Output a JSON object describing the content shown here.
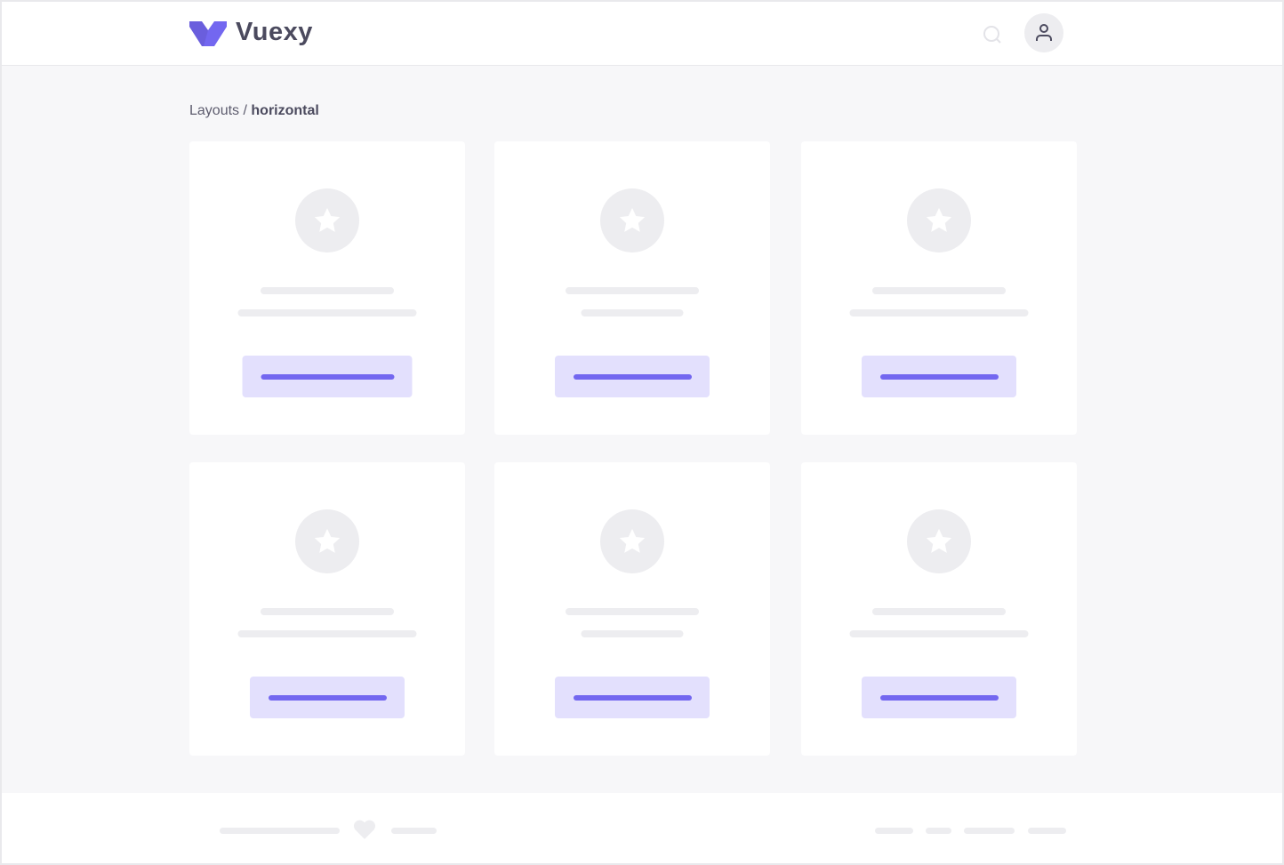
{
  "header": {
    "brand": "Vuexy",
    "logo_color": "#7367f0",
    "search_icon": "search-icon",
    "user_icon": "user-icon"
  },
  "breadcrumb": {
    "parent": "Layouts",
    "separator": " / ",
    "current": "horizontal"
  },
  "cards": [
    {
      "icon": "star-icon"
    },
    {
      "icon": "star-icon"
    },
    {
      "icon": "star-icon"
    },
    {
      "icon": "star-icon"
    },
    {
      "icon": "star-icon"
    },
    {
      "icon": "star-icon"
    }
  ],
  "footer": {
    "icon": "heart-icon"
  },
  "colors": {
    "accent": "#7367f0",
    "accent_light": "#e3e0fd",
    "placeholder": "#ededf0",
    "background": "#f7f7f9"
  }
}
